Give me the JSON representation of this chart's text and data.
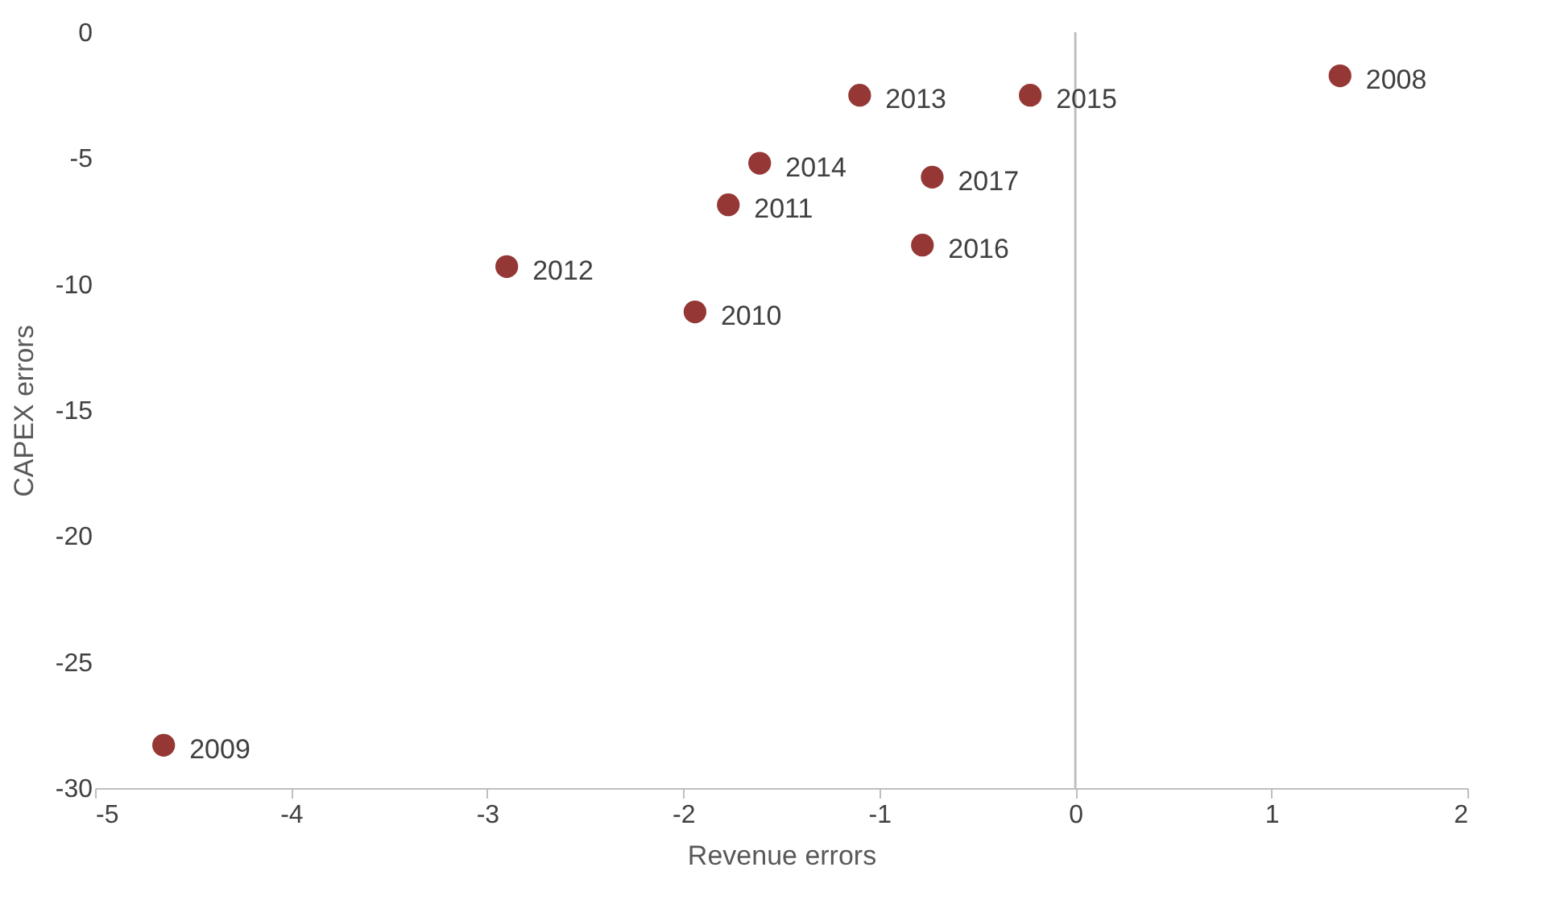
{
  "chart_data": {
    "type": "scatter",
    "xlabel": "Revenue errors",
    "ylabel": "CAPEX errors",
    "x": [
      1.35,
      -4.65,
      -1.94,
      -1.77,
      -2.9,
      -1.1,
      -1.61,
      -0.23,
      -0.78,
      -0.73
    ],
    "series": [
      {
        "color": "#953735",
        "values": [
          -1.73,
          -28.3,
          -11.1,
          -6.85,
          -9.3,
          -2.5,
          -5.2,
          -2.5,
          -8.45,
          -5.75
        ]
      }
    ],
    "annotations": [
      {
        "text": "2008",
        "x": 1.35,
        "y": -1.73
      },
      {
        "text": "2009",
        "x": -4.65,
        "y": -28.3
      },
      {
        "text": "2010",
        "x": -1.94,
        "y": -11.1
      },
      {
        "text": "2011",
        "x": -1.77,
        "y": -6.85
      },
      {
        "text": "2012",
        "x": -2.9,
        "y": -9.3
      },
      {
        "text": "2013",
        "x": -1.1,
        "y": -2.5
      },
      {
        "text": "2014",
        "x": -1.61,
        "y": -5.2
      },
      {
        "text": "2015",
        "x": -0.23,
        "y": -2.5
      },
      {
        "text": "2016",
        "x": -0.78,
        "y": -8.45
      },
      {
        "text": "2017",
        "x": -0.73,
        "y": -5.75
      }
    ],
    "xlim": [
      -5,
      2
    ],
    "xticks": [
      -5,
      -4,
      -3,
      -2,
      -1,
      0,
      1,
      2
    ],
    "ylim": [
      -30,
      0
    ],
    "yticks": [
      -30,
      -25,
      -20,
      -15,
      -10,
      -5,
      0
    ],
    "ref_lines": [
      {
        "axis": "x",
        "value": 0,
        "color": "#bfbfbf"
      }
    ],
    "marker": "circle",
    "grid": false
  }
}
